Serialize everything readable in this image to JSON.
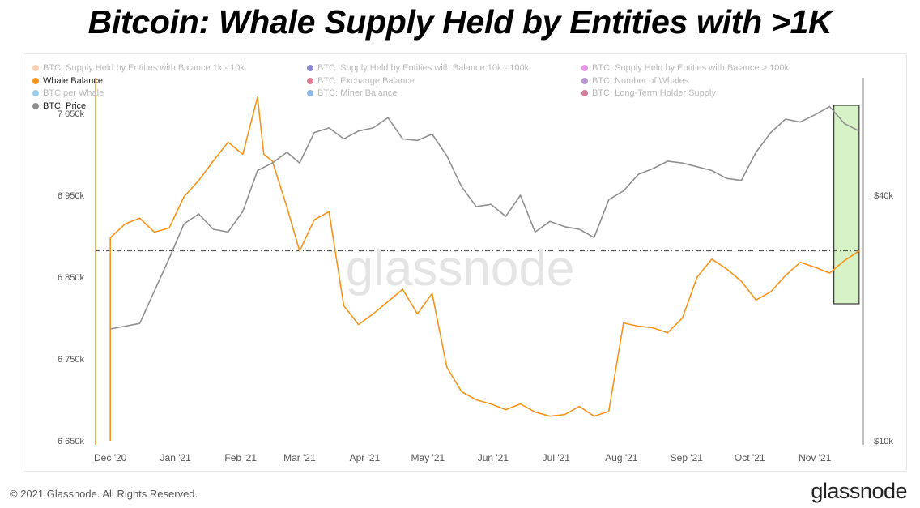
{
  "title": "Bitcoin: Whale Supply Held by Entities with >1K",
  "legend": [
    {
      "label": "BTC: Supply Held by Entities with Balance 1k - 10k",
      "color": "#f0a878",
      "active": false
    },
    {
      "label": "BTC: Supply Held by Entities with Balance 10k - 100k",
      "color": "#2a2a9e",
      "active": false
    },
    {
      "label": "BTC: Supply Held by Entities with Balance > 100k",
      "color": "#d63fd6",
      "active": false
    },
    {
      "label": "Whale Balance",
      "color": "#f7931a",
      "active": true
    },
    {
      "label": "BTC: Exchange Balance",
      "color": "#c0143c",
      "active": false
    },
    {
      "label": "BTC: Number of Whales",
      "color": "#7b3fa8",
      "active": false
    },
    {
      "label": "BTC per Whale",
      "color": "#4aa0e0",
      "active": false
    },
    {
      "label": "BTC: Miner Balance",
      "color": "#2f7fd6",
      "active": false
    },
    {
      "label": "BTC: Long-Term Holder Supply",
      "color": "#b0144e",
      "active": false
    },
    {
      "label": "BTC: Price",
      "color": "#8f8f8f",
      "active": true
    }
  ],
  "footer": {
    "copyright": "© 2021 Glassnode. All Rights Reserved.",
    "logo": "glassnode",
    "watermark": "glassnode"
  },
  "chart_data": {
    "type": "line",
    "x_ticks": [
      "Dec '20",
      "Jan '21",
      "Feb '21",
      "Mar '21",
      "Apr '21",
      "May '21",
      "Jun '21",
      "Jul '21",
      "Aug '21",
      "Sep '21",
      "Oct '21",
      "Nov '21"
    ],
    "y_left_ticks": [
      "6 650k",
      "6 750k",
      "6 850k",
      "6 950k",
      "7 050k"
    ],
    "y_left_values": [
      6650000,
      6750000,
      6850000,
      6950000,
      7050000
    ],
    "y_right_ticks": [
      "$10k",
      "$40k"
    ],
    "y_right_values": [
      10000,
      40000
    ],
    "y_right_scale": "log",
    "reference_line_value": 6882000,
    "highlight_box": {
      "from": "2021-11-10",
      "to": "2021-11-22",
      "color": "#d8f2c8"
    },
    "series": [
      {
        "name": "Whale Balance",
        "axis": "left",
        "color": "#f7931a",
        "x": [
          "2020-12-01",
          "2020-12-08",
          "2020-12-15",
          "2020-12-22",
          "2020-12-29",
          "2021-01-05",
          "2021-01-12",
          "2021-01-19",
          "2021-01-26",
          "2021-02-02",
          "2021-02-09",
          "2021-02-12",
          "2021-02-16",
          "2021-02-23",
          "2021-03-01",
          "2021-03-08",
          "2021-03-15",
          "2021-03-22",
          "2021-03-29",
          "2021-04-05",
          "2021-04-12",
          "2021-04-19",
          "2021-04-26",
          "2021-05-03",
          "2021-05-10",
          "2021-05-17",
          "2021-05-24",
          "2021-05-31",
          "2021-06-07",
          "2021-06-14",
          "2021-06-21",
          "2021-06-28",
          "2021-07-05",
          "2021-07-12",
          "2021-07-19",
          "2021-07-26",
          "2021-08-02",
          "2021-08-09",
          "2021-08-16",
          "2021-08-23",
          "2021-08-30",
          "2021-09-06",
          "2021-09-13",
          "2021-09-20",
          "2021-09-27",
          "2021-10-04",
          "2021-10-11",
          "2021-10-18",
          "2021-10-25",
          "2021-11-01",
          "2021-11-08",
          "2021-11-15",
          "2021-11-22"
        ],
        "values": [
          6898000,
          6915000,
          6922000,
          6905000,
          6910000,
          6948000,
          6968000,
          6992000,
          7015000,
          7000000,
          7070000,
          7000000,
          6992000,
          6935000,
          6882000,
          6920000,
          6930000,
          6815000,
          6792000,
          6805000,
          6820000,
          6835000,
          6805000,
          6830000,
          6740000,
          6710000,
          6700000,
          6695000,
          6688000,
          6695000,
          6685000,
          6680000,
          6682000,
          6692000,
          6680000,
          6686000,
          6794000,
          6790000,
          6788000,
          6782000,
          6800000,
          6850000,
          6872000,
          6860000,
          6845000,
          6822000,
          6832000,
          6852000,
          6868000,
          6862000,
          6855000,
          6870000,
          6882000
        ]
      },
      {
        "name": "BTC: Price",
        "axis": "right",
        "color": "#8f8f8f",
        "x": [
          "2020-12-01",
          "2020-12-08",
          "2020-12-15",
          "2020-12-22",
          "2020-12-29",
          "2021-01-05",
          "2021-01-12",
          "2021-01-19",
          "2021-01-26",
          "2021-02-02",
          "2021-02-09",
          "2021-02-16",
          "2021-02-23",
          "2021-03-01",
          "2021-03-08",
          "2021-03-15",
          "2021-03-22",
          "2021-03-29",
          "2021-04-05",
          "2021-04-12",
          "2021-04-19",
          "2021-04-26",
          "2021-05-03",
          "2021-05-10",
          "2021-05-17",
          "2021-05-24",
          "2021-05-31",
          "2021-06-07",
          "2021-06-14",
          "2021-06-21",
          "2021-06-28",
          "2021-07-05",
          "2021-07-12",
          "2021-07-19",
          "2021-07-26",
          "2021-08-02",
          "2021-08-09",
          "2021-08-16",
          "2021-08-23",
          "2021-08-30",
          "2021-09-06",
          "2021-09-13",
          "2021-09-20",
          "2021-09-27",
          "2021-10-04",
          "2021-10-11",
          "2021-10-18",
          "2021-10-25",
          "2021-11-01",
          "2021-11-08",
          "2021-11-15",
          "2021-11-22"
        ],
        "values": [
          18800,
          19100,
          19400,
          23300,
          28000,
          34000,
          36000,
          33000,
          32500,
          36500,
          46000,
          48000,
          51000,
          48000,
          57000,
          58500,
          55000,
          57500,
          58500,
          62000,
          55000,
          54500,
          56500,
          50000,
          42000,
          37500,
          38000,
          35500,
          40000,
          32500,
          34500,
          33500,
          33000,
          31500,
          39000,
          41000,
          45000,
          46500,
          48500,
          48000,
          47000,
          46000,
          44000,
          43500,
          51000,
          57000,
          61500,
          60500,
          63000,
          66000,
          60000,
          57500
        ]
      }
    ]
  }
}
